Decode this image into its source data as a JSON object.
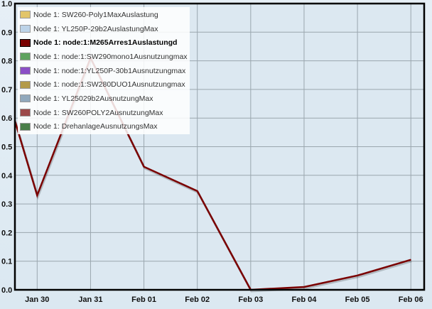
{
  "chart_data": {
    "type": "line",
    "title": "",
    "xlabel": "",
    "ylabel": "",
    "ylim": [
      0,
      1.0
    ],
    "xlim": [
      "Jan 29 14:00",
      "Feb 06 06:00"
    ],
    "grid": true,
    "legend_placement": "top-left",
    "y_ticks": [
      "0.0",
      "0.1",
      "0.2",
      "0.3",
      "0.4",
      "0.5",
      "0.6",
      "0.7",
      "0.8",
      "0.9",
      "1.0"
    ],
    "x_ticks": [
      {
        "label": "Jan 30",
        "date": "Jan 30 00:00"
      },
      {
        "label": "Jan 31",
        "date": "Jan 31 00:00"
      },
      {
        "label": "Feb 01",
        "date": "Feb 01 00:00"
      },
      {
        "label": "Feb 02",
        "date": "Feb 02 00:00"
      },
      {
        "label": "Feb 03",
        "date": "Feb 03 00:00"
      },
      {
        "label": "Feb 04",
        "date": "Feb 04 00:00"
      },
      {
        "label": "Feb 05",
        "date": "Feb 05 00:00"
      },
      {
        "label": "Feb 06",
        "date": "Feb 06 00:00"
      }
    ],
    "legend": [
      {
        "name": "Node 1: SW260-Poly1MaxAuslastung",
        "color": "#e2c56a"
      },
      {
        "name": "Node 1: YL250P-29b2AuslastungMax",
        "color": "#bcd3e8"
      },
      {
        "name": "Node 1: node:1:M265Arres1Auslastungd",
        "color": "#7a0000",
        "active": true
      },
      {
        "name": "Node 1: node:1:SW290mono1Ausnutzungmax",
        "color": "#5fa35f"
      },
      {
        "name": "Node 1: node:1:YL250P-30b1Ausnutzungmax",
        "color": "#8b4fc6"
      },
      {
        "name": "Node 1: node:1:SW280DUO1Ausnutzungmax",
        "color": "#b39a4a"
      },
      {
        "name": "Node 1: YL25029b2AusnutzungMax",
        "color": "#90a8bc"
      },
      {
        "name": "Node 1: SW260POLY2AusnutzungMax",
        "color": "#9c4a4a"
      },
      {
        "name": "Node 1: DrehanlageAusnutzungsMax",
        "color": "#4a7f4a"
      }
    ],
    "series": [
      {
        "name": "Node 1: node:1:M265Arres1Auslastungd",
        "color": "#7a0000",
        "x": [
          "Jan 29 14:00",
          "Jan 30 00:00",
          "Jan 31 00:00",
          "Feb 01 00:00",
          "Feb 02 00:00",
          "Feb 03 00:00",
          "Feb 04 00:00",
          "Feb 05 00:00",
          "Feb 06 00:00"
        ],
        "values": [
          0.59,
          0.33,
          0.81,
          0.43,
          0.345,
          0.0,
          0.01,
          0.05,
          0.105
        ]
      }
    ]
  }
}
